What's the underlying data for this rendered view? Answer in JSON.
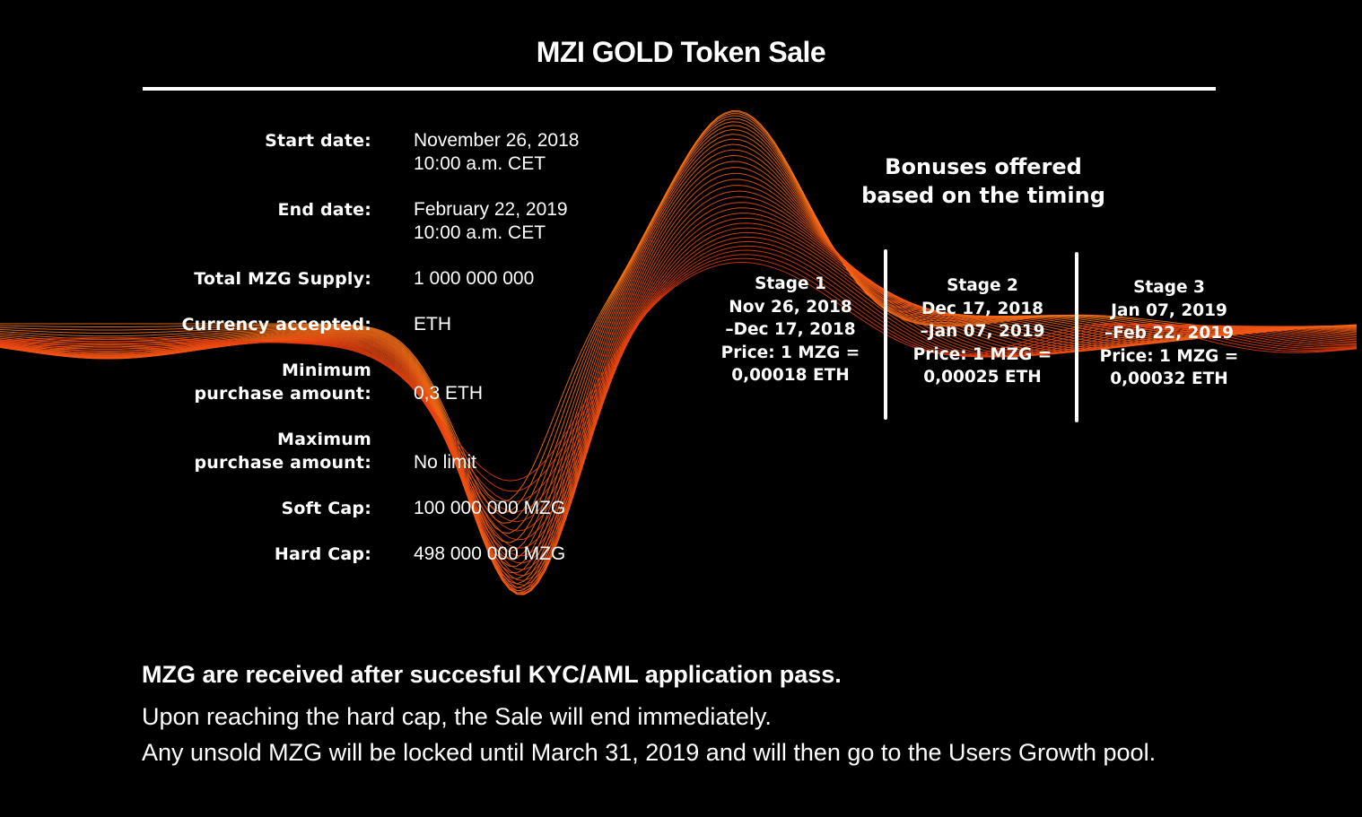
{
  "title": "MZI GOLD Token Sale",
  "details": [
    {
      "label": [
        "Start date:"
      ],
      "value": [
        "November 26, 2018",
        "10:00 a.m. CET"
      ]
    },
    {
      "label": [
        "End date:"
      ],
      "value": [
        "February 22, 2019",
        "10:00 a.m. CET"
      ]
    },
    {
      "label": [
        "Total MZG Supply:"
      ],
      "value": [
        "1 000 000 000"
      ]
    },
    {
      "label": [
        "Currency accepted:"
      ],
      "value": [
        "ETH"
      ]
    },
    {
      "label": [
        "Minimum",
        "purchase amount:"
      ],
      "value": [
        "0,3 ETH"
      ]
    },
    {
      "label": [
        "Maximum",
        "purchase amount:"
      ],
      "value": [
        "No limit"
      ]
    },
    {
      "label": [
        "Soft Cap:"
      ],
      "value": [
        "100 000 000 MZG"
      ]
    },
    {
      "label": [
        "Hard Cap:"
      ],
      "value": [
        "498 000 000 MZG"
      ]
    }
  ],
  "bonuses": {
    "title_line1": "Bonuses offered",
    "title_line2": "based on the timing",
    "stages": [
      {
        "name": "Stage 1",
        "range_start": "Nov 26, 2018",
        "range_end": "–Dec 17, 2018",
        "price_label": "Price: 1 MZG =",
        "price_value": "0,00018 ETH"
      },
      {
        "name": "Stage 2",
        "range_start": "Dec 17, 2018",
        "range_end": "–Jan 07, 2019",
        "price_label": "Price: 1 MZG =",
        "price_value": "0,00025 ETH"
      },
      {
        "name": "Stage 3",
        "range_start": "Jan 07, 2019",
        "range_end": "–Feb 22, 2019",
        "price_label": "Price: 1 MZG =",
        "price_value": "0,00032 ETH"
      }
    ]
  },
  "notes": {
    "line1": "MZG are received after succesful KYC/AML application pass.",
    "line2": "Upon reaching the hard cap, the Sale will end immediately.",
    "line3": "Any unsold MZG will be locked until March 31, 2019 and will then go to the Users Growth pool."
  },
  "colors": {
    "background": "#000000",
    "wave_orange": "#ff7a1a",
    "wave_red": "#e83a10"
  }
}
